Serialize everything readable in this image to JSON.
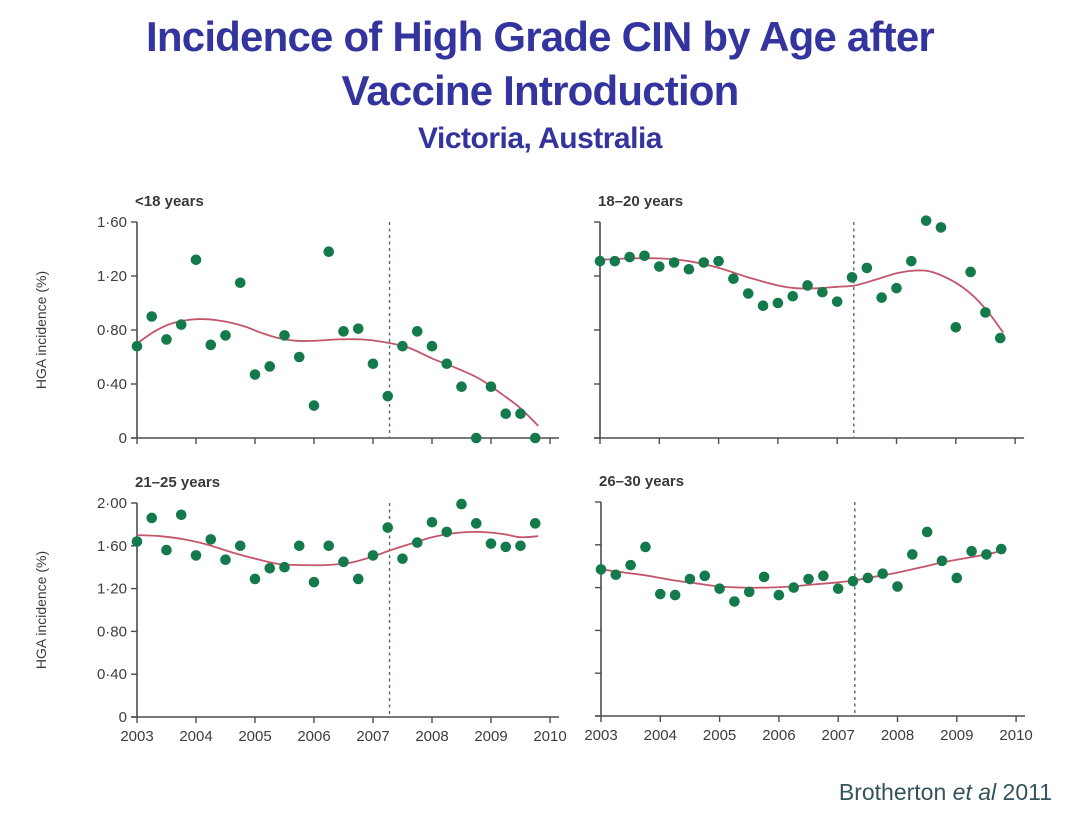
{
  "slide": {
    "title_line1": "Incidence of High Grade CIN by Age after",
    "title_line2": "Vaccine Introduction",
    "title_line3": "Victoria, Australia",
    "citation_prefix": "Brotherton ",
    "citation_italic": "et al",
    "citation_suffix": " 2011"
  },
  "colors": {
    "title": "#34349e",
    "citation": "#33545c",
    "dot_green": "#147a4b",
    "trend_red": "#c4566c",
    "vline_slate": "#4f6878",
    "axis": "#4d4d4d",
    "tick_text": "#3d3d3d",
    "panel_title": "#3a3a3a"
  },
  "chart_data": {
    "type": "scatter",
    "description": "Quarterly HGA (high-grade cervical abnormality) incidence by age group, Victoria Australia, with loess trend line and dashed vertical line marking vaccine introduction",
    "x_quarterly": [
      2003.0,
      2003.25,
      2003.5,
      2003.75,
      2004.0,
      2004.25,
      2004.5,
      2004.75,
      2005.0,
      2005.25,
      2005.5,
      2005.75,
      2006.0,
      2006.25,
      2006.5,
      2006.75,
      2007.0,
      2007.25,
      2007.5,
      2007.75,
      2008.0,
      2008.25,
      2008.5,
      2008.75,
      2009.0,
      2009.25,
      2009.5,
      2009.75
    ],
    "x_ticks": [
      2003,
      2004,
      2005,
      2006,
      2007,
      2008,
      2009,
      2010
    ],
    "x_tick_labels": [
      "2003",
      "2004",
      "2005",
      "2006",
      "2007",
      "2008",
      "2009",
      "2010"
    ],
    "xlim": [
      2003,
      2010
    ],
    "vline_x": 2007.28,
    "legend_position": "none",
    "grid": false,
    "panels": [
      {
        "title": "<18 years",
        "ylabel": "HGA incidence (%)",
        "ylim": [
          0,
          1.6
        ],
        "yticks": [
          0,
          0.4,
          0.8,
          1.2,
          1.6
        ],
        "ytick_labels": [
          "0",
          "0·40",
          "0·80",
          "1·20",
          "1·60"
        ],
        "show_y_labels": true,
        "show_x_labels": false,
        "values": [
          0.68,
          0.9,
          0.73,
          0.84,
          1.32,
          0.69,
          0.76,
          1.15,
          0.47,
          0.53,
          0.76,
          0.6,
          0.24,
          1.38,
          0.79,
          0.81,
          0.55,
          0.31,
          0.68,
          0.79,
          0.68,
          0.55,
          0.38,
          0.0,
          0.38,
          0.18,
          0.18,
          0.0
        ],
        "trend": [
          [
            2003,
            0.7
          ],
          [
            2003.3,
            0.79
          ],
          [
            2003.6,
            0.85
          ],
          [
            2004,
            0.88
          ],
          [
            2004.4,
            0.87
          ],
          [
            2004.8,
            0.83
          ],
          [
            2005.1,
            0.78
          ],
          [
            2005.4,
            0.74
          ],
          [
            2005.7,
            0.72
          ],
          [
            2006,
            0.72
          ],
          [
            2006.4,
            0.73
          ],
          [
            2006.8,
            0.73
          ],
          [
            2007.2,
            0.71
          ],
          [
            2007.6,
            0.67
          ],
          [
            2008,
            0.59
          ],
          [
            2008.4,
            0.52
          ],
          [
            2008.8,
            0.44
          ],
          [
            2009.2,
            0.32
          ],
          [
            2009.5,
            0.22
          ],
          [
            2009.8,
            0.09
          ]
        ]
      },
      {
        "title": "18–20 years",
        "ylabel": "",
        "ylim": [
          0,
          1.6
        ],
        "yticks": [
          0,
          0.4,
          0.8,
          1.2,
          1.6
        ],
        "ytick_labels": [
          "0",
          "0·40",
          "0·80",
          "1·20",
          "1·60"
        ],
        "show_y_labels": false,
        "show_x_labels": false,
        "values": [
          1.31,
          1.31,
          1.34,
          1.35,
          1.27,
          1.3,
          1.25,
          1.3,
          1.31,
          1.18,
          1.07,
          0.98,
          1.0,
          1.05,
          1.13,
          1.08,
          1.01,
          1.19,
          1.26,
          1.04,
          1.11,
          1.31,
          1.61,
          1.56,
          0.82,
          1.23,
          0.93,
          0.74
        ],
        "trend": [
          [
            2003,
            1.32
          ],
          [
            2003.5,
            1.33
          ],
          [
            2004,
            1.33
          ],
          [
            2004.5,
            1.31
          ],
          [
            2005,
            1.26
          ],
          [
            2005.5,
            1.19
          ],
          [
            2006,
            1.13
          ],
          [
            2006.3,
            1.11
          ],
          [
            2006.7,
            1.11
          ],
          [
            2007,
            1.12
          ],
          [
            2007.3,
            1.13
          ],
          [
            2007.7,
            1.18
          ],
          [
            2008,
            1.22
          ],
          [
            2008.3,
            1.24
          ],
          [
            2008.6,
            1.23
          ],
          [
            2009,
            1.15
          ],
          [
            2009.3,
            1.05
          ],
          [
            2009.55,
            0.93
          ],
          [
            2009.8,
            0.78
          ]
        ]
      },
      {
        "title": "21–25 years",
        "ylabel": "HGA incidence (%)",
        "ylim": [
          0,
          2.0
        ],
        "yticks": [
          0,
          0.4,
          0.8,
          1.2,
          1.6,
          2.0
        ],
        "ytick_labels": [
          "0",
          "0·40",
          "0·80",
          "1·20",
          "1·60",
          "2·00"
        ],
        "show_y_labels": true,
        "show_x_labels": true,
        "values": [
          1.64,
          1.86,
          1.56,
          1.89,
          1.51,
          1.66,
          1.47,
          1.6,
          1.29,
          1.39,
          1.4,
          1.6,
          1.26,
          1.6,
          1.45,
          1.29,
          1.51,
          1.77,
          1.48,
          1.63,
          1.82,
          1.73,
          1.99,
          1.81,
          1.62,
          1.59,
          1.6,
          1.81
        ],
        "trend": [
          [
            2003,
            1.7
          ],
          [
            2003.4,
            1.69
          ],
          [
            2003.8,
            1.66
          ],
          [
            2004.2,
            1.61
          ],
          [
            2004.6,
            1.54
          ],
          [
            2005,
            1.48
          ],
          [
            2005.4,
            1.43
          ],
          [
            2005.8,
            1.42
          ],
          [
            2006.2,
            1.42
          ],
          [
            2006.6,
            1.44
          ],
          [
            2007,
            1.5
          ],
          [
            2007.3,
            1.56
          ],
          [
            2007.7,
            1.63
          ],
          [
            2008,
            1.68
          ],
          [
            2008.4,
            1.72
          ],
          [
            2008.8,
            1.73
          ],
          [
            2009.2,
            1.71
          ],
          [
            2009.5,
            1.68
          ],
          [
            2009.8,
            1.69
          ]
        ]
      },
      {
        "title": "26–30 years",
        "ylabel": "",
        "ylim": [
          0,
          2.0
        ],
        "yticks": [
          0,
          0.4,
          0.8,
          1.2,
          1.6,
          2.0
        ],
        "ytick_labels": [
          "0",
          "0·40",
          "0·80",
          "1·20",
          "1·60",
          "2·00"
        ],
        "show_y_labels": false,
        "show_x_labels": true,
        "values": [
          1.37,
          1.32,
          1.41,
          1.58,
          1.14,
          1.13,
          1.28,
          1.31,
          1.19,
          1.07,
          1.16,
          1.3,
          1.13,
          1.2,
          1.28,
          1.31,
          1.19,
          1.26,
          1.29,
          1.33,
          1.21,
          1.51,
          1.72,
          1.45,
          1.29,
          1.54,
          1.51,
          1.56
        ],
        "trend": [
          [
            2003,
            1.37
          ],
          [
            2003.4,
            1.34
          ],
          [
            2003.8,
            1.31
          ],
          [
            2004.2,
            1.27
          ],
          [
            2004.6,
            1.24
          ],
          [
            2005,
            1.21
          ],
          [
            2005.4,
            1.2
          ],
          [
            2005.8,
            1.2
          ],
          [
            2006.2,
            1.21
          ],
          [
            2006.6,
            1.23
          ],
          [
            2007,
            1.25
          ],
          [
            2007.3,
            1.27
          ],
          [
            2007.7,
            1.31
          ],
          [
            2008,
            1.34
          ],
          [
            2008.4,
            1.39
          ],
          [
            2008.8,
            1.44
          ],
          [
            2009.2,
            1.48
          ],
          [
            2009.5,
            1.51
          ],
          [
            2009.8,
            1.55
          ]
        ]
      }
    ]
  }
}
